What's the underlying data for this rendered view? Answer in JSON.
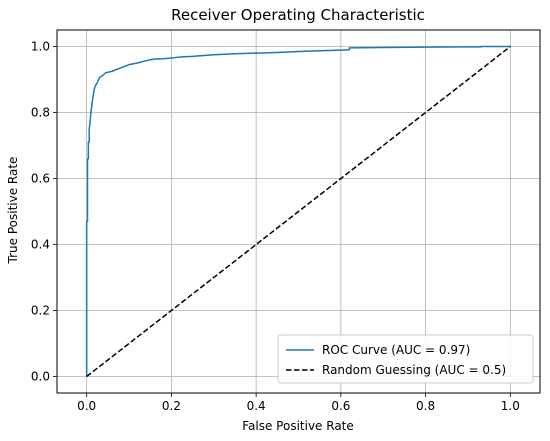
{
  "chart_data": {
    "type": "line",
    "title": "Receiver Operating Characteristic",
    "xlabel": "False Positive Rate",
    "ylabel": "True Positive Rate",
    "xlim": [
      -0.07,
      1.07
    ],
    "ylim": [
      -0.05,
      1.05
    ],
    "xticks": [
      0.0,
      0.2,
      0.4,
      0.6,
      0.8,
      1.0
    ],
    "yticks": [
      0.0,
      0.2,
      0.4,
      0.6,
      0.8,
      1.0
    ],
    "xtick_labels": [
      "0.0",
      "0.2",
      "0.4",
      "0.6",
      "0.8",
      "1.0"
    ],
    "ytick_labels": [
      "0.0",
      "0.2",
      "0.4",
      "0.6",
      "0.8",
      "1.0"
    ],
    "grid": true,
    "legend_position": "lower-right",
    "series": [
      {
        "name": "ROC Curve (AUC = 0.97)",
        "color": "#1f77b4",
        "style": "solid",
        "x": [
          0.0,
          0.0,
          0.002,
          0.002,
          0.004,
          0.004,
          0.006,
          0.006,
          0.008,
          0.01,
          0.012,
          0.014,
          0.016,
          0.018,
          0.02,
          0.025,
          0.03,
          0.035,
          0.04,
          0.045,
          0.05,
          0.06,
          0.07,
          0.08,
          0.09,
          0.1,
          0.12,
          0.14,
          0.16,
          0.18,
          0.2,
          0.22,
          0.25,
          0.3,
          0.35,
          0.4,
          0.45,
          0.5,
          0.55,
          0.6,
          0.62,
          0.62,
          0.7,
          0.8,
          0.9,
          0.93,
          0.93,
          1.0
        ],
        "y": [
          0.0,
          0.47,
          0.47,
          0.66,
          0.66,
          0.71,
          0.71,
          0.75,
          0.77,
          0.8,
          0.82,
          0.84,
          0.855,
          0.87,
          0.88,
          0.89,
          0.905,
          0.91,
          0.915,
          0.92,
          0.922,
          0.925,
          0.93,
          0.935,
          0.94,
          0.945,
          0.95,
          0.957,
          0.962,
          0.963,
          0.965,
          0.968,
          0.97,
          0.975,
          0.978,
          0.98,
          0.982,
          0.985,
          0.987,
          0.989,
          0.99,
          0.996,
          0.997,
          0.998,
          0.999,
          0.999,
          1.0,
          1.0
        ]
      },
      {
        "name": "Random Guessing (AUC = 0.5)",
        "color": "#000000",
        "style": "dashed",
        "x": [
          0.0,
          1.0
        ],
        "y": [
          0.0,
          1.0
        ]
      }
    ]
  }
}
